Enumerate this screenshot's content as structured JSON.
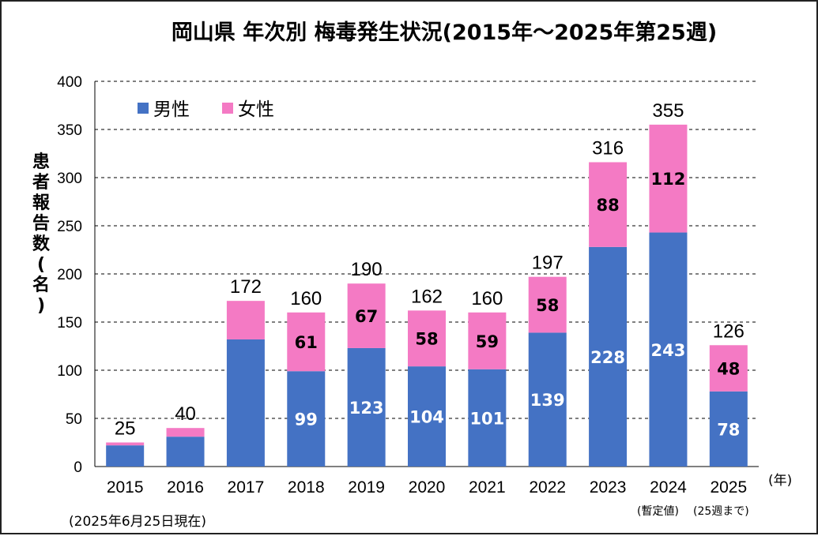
{
  "chart_data": {
    "type": "bar",
    "stacked": true,
    "title": "岡山県  年次別  梅毒発生状況(2015年～2025年第25週)",
    "ylabel": "患者報告数(名)",
    "xlabel": "(年)",
    "ylim": [
      0,
      400
    ],
    "yticks": [
      0,
      50,
      100,
      150,
      200,
      250,
      300,
      350,
      400
    ],
    "categories": [
      "2015",
      "2016",
      "2017",
      "2018",
      "2019",
      "2020",
      "2021",
      "2022",
      "2023",
      "2024",
      "2025"
    ],
    "series": [
      {
        "name": "男性",
        "color": "#4472c4",
        "values": [
          22,
          31,
          132,
          99,
          123,
          104,
          101,
          139,
          228,
          243,
          78
        ],
        "labels": [
          "",
          "",
          "",
          "99",
          "123",
          "104",
          "101",
          "139",
          "228",
          "243",
          "78"
        ]
      },
      {
        "name": "女性",
        "color": "#f47ac4",
        "values": [
          3,
          9,
          40,
          61,
          67,
          58,
          59,
          58,
          88,
          112,
          48
        ],
        "labels": [
          "",
          "",
          "",
          "61",
          "67",
          "58",
          "59",
          "58",
          "88",
          "112",
          "48"
        ]
      }
    ],
    "totals": [
      "25",
      "40",
      "172",
      "160",
      "190",
      "162",
      "160",
      "197",
      "316",
      "355",
      "126"
    ],
    "highlight_total_index": 9,
    "highlight_color": "#e8001f",
    "legend_position": "top-left",
    "grid": true,
    "annotations": {
      "as_of": "(2025年6月25日現在)",
      "note_2024": "(暫定値)",
      "note_2025": "(25週まで)"
    }
  }
}
